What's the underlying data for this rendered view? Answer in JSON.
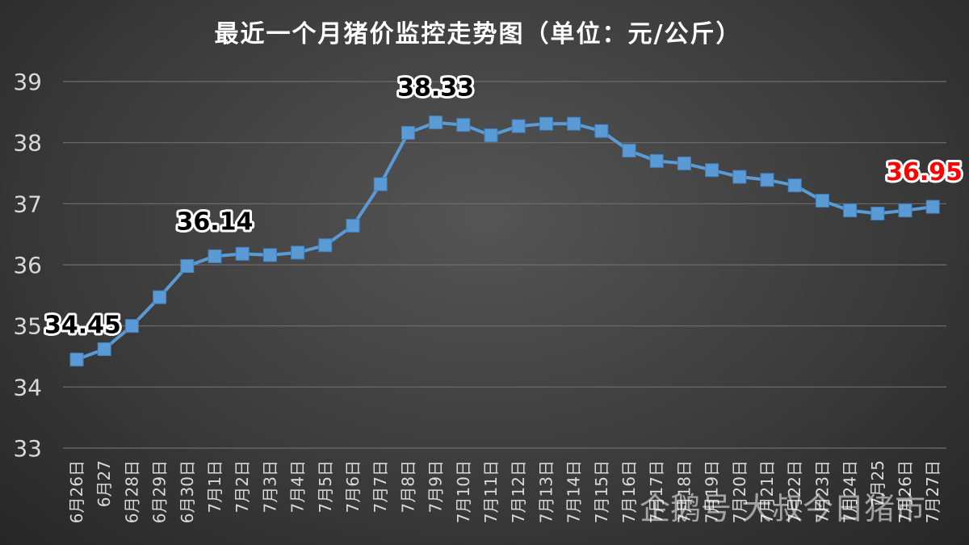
{
  "watermark": "企鹅号 大叔今日猪市",
  "chart_data": {
    "type": "line",
    "title": "最近一个月猪价监控走势图（单位：元/公斤）",
    "xlabel": "",
    "ylabel": "",
    "ylim": [
      33,
      39
    ],
    "yticks": [
      33,
      34,
      35,
      36,
      37,
      38,
      39
    ],
    "grid": true,
    "legend": "none",
    "colors": {
      "line": "#5b9bd5",
      "label_default": "#000000",
      "label_highlight": "#ff0000"
    },
    "categories": [
      "6月26日",
      "6月27",
      "6月28日",
      "6月29日",
      "6月30日",
      "7月1日",
      "7月2日",
      "7月3日",
      "7月4日",
      "7月5日",
      "7月6日",
      "7月7日",
      "7月8日",
      "7月9日",
      "7月10日",
      "7月11日",
      "7月12日",
      "7月13日",
      "7月14日",
      "7月15日",
      "7月16日",
      "7月17日",
      "7月18日",
      "7月19日",
      "7月20日",
      "7月21日",
      "7月22日",
      "7月23日",
      "7月24日",
      "7月25",
      "7月26日",
      "7月27日"
    ],
    "series": [
      {
        "values": [
          34.45,
          34.62,
          35.0,
          35.47,
          35.98,
          36.14,
          36.18,
          36.16,
          36.2,
          36.32,
          36.64,
          37.32,
          38.16,
          38.33,
          38.29,
          38.12,
          38.27,
          38.31,
          38.31,
          38.19,
          37.87,
          37.7,
          37.66,
          37.55,
          37.44,
          37.39,
          37.3,
          37.05,
          36.89,
          36.84,
          36.89,
          36.95
        ]
      }
    ],
    "annotations": [
      {
        "index": 0,
        "text": "34.45",
        "color": "#000000"
      },
      {
        "index": 5,
        "text": "36.14",
        "color": "#000000"
      },
      {
        "index": 13,
        "text": "38.33",
        "color": "#000000"
      },
      {
        "index": 31,
        "text": "36.95",
        "color": "#ff0000"
      }
    ]
  }
}
